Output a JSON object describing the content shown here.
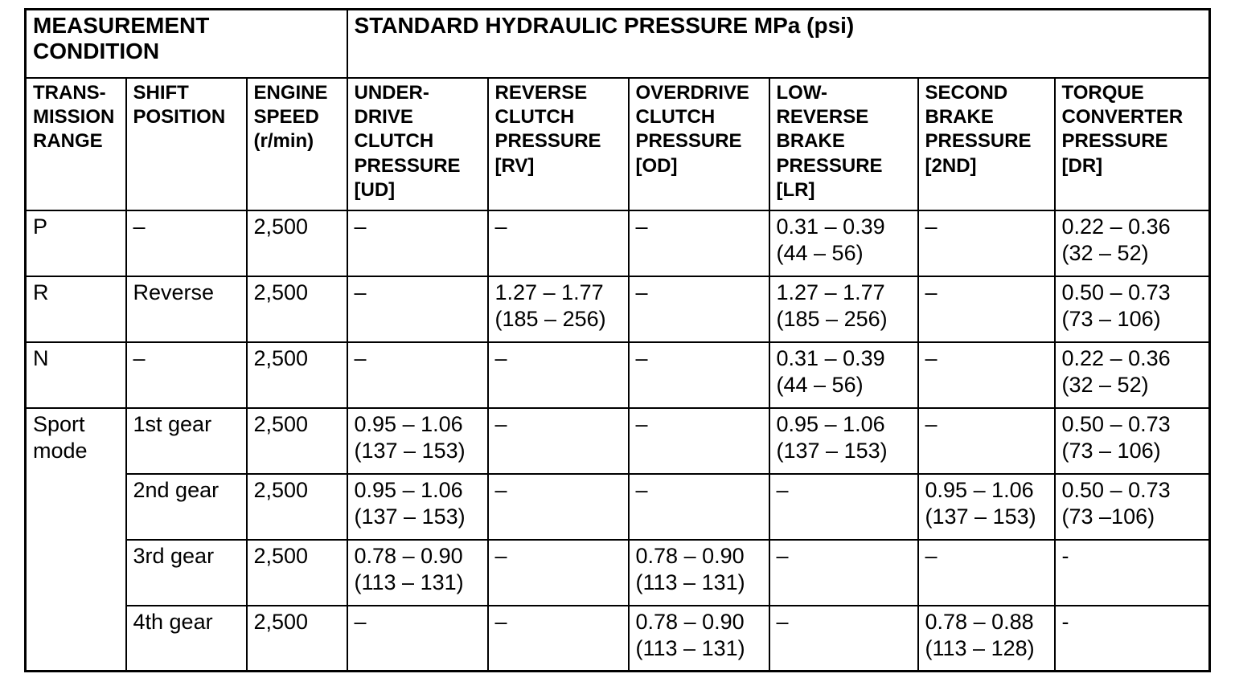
{
  "table": {
    "group_headers": {
      "measurement_condition": "MEASUREMENT\nCONDITION",
      "standard_pressure": "STANDARD HYDRAULIC PRESSURE MPa (psi)"
    },
    "column_headers": {
      "range": "TRANS-\nMISSION\nRANGE",
      "shift": "SHIFT\nPOSITION",
      "speed": "ENGINE\nSPEED\n(r/min)",
      "ud": "UNDER-\nDRIVE\nCLUTCH\nPRESSURE\n[UD]",
      "rv": "REVERSE\nCLUTCH\nPRESSURE\n[RV]",
      "od": "OVERDRIVE\nCLUTCH\nPRESSURE\n[OD]",
      "lr": "LOW-\nREVERSE\nBRAKE\nPRESSURE\n[LR]",
      "second": "SECOND\nBRAKE\nPRESSURE\n[2ND]",
      "dr": "TORQUE\nCONVERTER\nPRESSURE\n[DR]"
    },
    "rows": [
      {
        "range": "P",
        "shift": "–",
        "speed": "2,500",
        "ud": "–",
        "rv": "–",
        "od": "–",
        "lr": "0.31 – 0.39\n(44 – 56)",
        "second": "–",
        "dr": "0.22 – 0.36\n(32 – 52)"
      },
      {
        "range": "R",
        "shift": "Reverse",
        "speed": "2,500",
        "ud": "–",
        "rv": "1.27 – 1.77\n(185 – 256)",
        "od": "–",
        "lr": "1.27 – 1.77\n(185 – 256)",
        "second": "–",
        "dr": "0.50 – 0.73\n(73 – 106)"
      },
      {
        "range": "N",
        "shift": "–",
        "speed": "2,500",
        "ud": "–",
        "rv": "–",
        "od": "–",
        "lr": "0.31 – 0.39\n(44 – 56)",
        "second": "–",
        "dr": "0.22 – 0.36\n(32 – 52)"
      },
      {
        "range": "Sport\nmode",
        "shift": "1st gear",
        "speed": "2,500",
        "ud": "0.95 – 1.06\n(137 – 153)",
        "rv": "–",
        "od": "–",
        "lr": "0.95 – 1.06\n(137 – 153)",
        "second": "–",
        "dr": "0.50 – 0.73\n(73 – 106)"
      },
      {
        "shift": "2nd gear",
        "speed": "2,500",
        "ud": "0.95 – 1.06\n(137 – 153)",
        "rv": "–",
        "od": "–",
        "lr": "–",
        "second": "0.95 – 1.06\n(137 – 153)",
        "dr": "0.50 – 0.73\n(73 –106)"
      },
      {
        "shift": "3rd gear",
        "speed": "2,500",
        "ud": "0.78 – 0.90\n(113 – 131)",
        "rv": "–",
        "od": "0.78 – 0.90\n(113 – 131)",
        "lr": "–",
        "second": "–",
        "dr": "-"
      },
      {
        "shift": "4th gear",
        "speed": "2,500",
        "ud": "–",
        "rv": "–",
        "od": "0.78 – 0.90\n(113 – 131)",
        "lr": "–",
        "second": "0.78 – 0.88\n(113 – 128)",
        "dr": "-"
      }
    ]
  }
}
